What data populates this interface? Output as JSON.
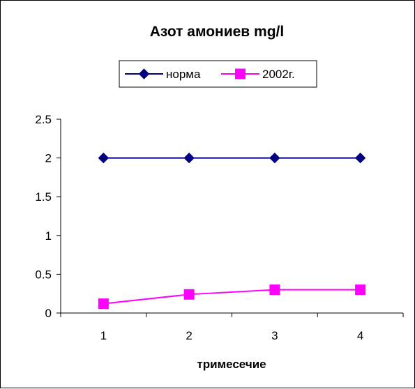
{
  "chart_data": {
    "type": "line",
    "title": "Азот амониев mg/l",
    "xlabel": "тримесечие",
    "ylabel": "",
    "categories": [
      "1",
      "2",
      "3",
      "4"
    ],
    "ylim": [
      0,
      2.5
    ],
    "yticks": [
      0,
      0.5,
      1,
      1.5,
      2,
      2.5
    ],
    "ytick_labels": [
      "0",
      "0.5",
      "1",
      "1.5",
      "2",
      "2.5"
    ],
    "grid": false,
    "legend_position": "top",
    "series": [
      {
        "name": "норма",
        "values": [
          2,
          2,
          2,
          2
        ],
        "color": "#000080",
        "marker": "diamond"
      },
      {
        "name": "2002г.",
        "values": [
          0.12,
          0.24,
          0.3,
          0.3
        ],
        "color": "#ff00ff",
        "marker": "square"
      }
    ]
  }
}
